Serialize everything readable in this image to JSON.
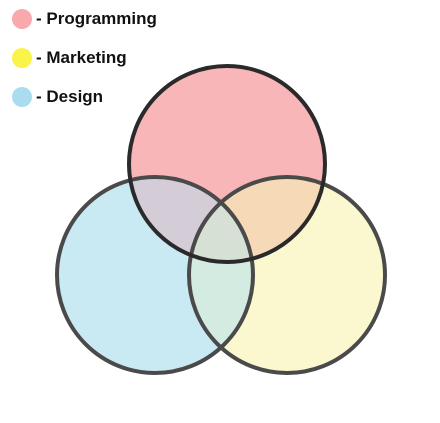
{
  "legend": {
    "items": [
      {
        "label": "- Programming",
        "color": "#f7a9ad"
      },
      {
        "label": "- Marketing",
        "color": "#f9f34a"
      },
      {
        "label": "- Design",
        "color": "#a9dcee"
      }
    ]
  },
  "diagram": {
    "sets": [
      {
        "name": "Programming",
        "fill": "#f8b6b9",
        "stroke": "#2a2a2a"
      },
      {
        "name": "Marketing",
        "fill": "#fbf8cf",
        "stroke": "#4a4a4a"
      },
      {
        "name": "Design",
        "fill": "#c9e9f3",
        "stroke": "#4a4a4a"
      }
    ],
    "intersections": {
      "programming_design": "#d4cdd8",
      "programming_marketing": "#f6dab8",
      "marketing_design": "#d3ebe1",
      "all": "#d6e0d4"
    }
  }
}
